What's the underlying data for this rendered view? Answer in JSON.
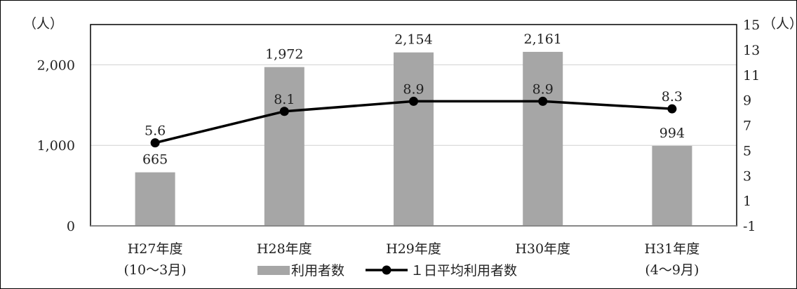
{
  "chart_data": {
    "type": "bar+line",
    "categories": [
      [
        "H27年度",
        "(10〜3月)"
      ],
      [
        "H28年度"
      ],
      [
        "H29年度"
      ],
      [
        "H30年度"
      ],
      [
        "H31年度",
        "(4〜9月)"
      ]
    ],
    "bar_series": {
      "name": "利用者数",
      "values": [
        665,
        1972,
        2154,
        2161,
        994
      ],
      "value_labels": [
        "665",
        "1,972",
        "2,154",
        "2,161",
        "994"
      ],
      "color": "#a6a6a6"
    },
    "line_series": {
      "name": "１日平均利用者数",
      "values": [
        5.6,
        8.1,
        8.9,
        8.9,
        8.3
      ],
      "value_labels": [
        "5.6",
        "8.1",
        "8.9",
        "8.9",
        "8.3"
      ],
      "color": "#000000"
    },
    "y_left": {
      "unit": "（人）",
      "min": 0,
      "max": 2500,
      "ticks": [
        0,
        1000,
        2000
      ],
      "tick_labels": [
        "0",
        "1,000",
        "2,000"
      ]
    },
    "y_right": {
      "unit": "（人）",
      "min": -1,
      "max": 15,
      "ticks": [
        -1,
        1,
        3,
        5,
        7,
        9,
        11,
        13,
        15
      ],
      "tick_labels": [
        "-1",
        "1",
        "3",
        "5",
        "7",
        "9",
        "11",
        "13",
        "15"
      ]
    },
    "grid": "horizontal-left-axis",
    "legend_position": "bottom"
  }
}
